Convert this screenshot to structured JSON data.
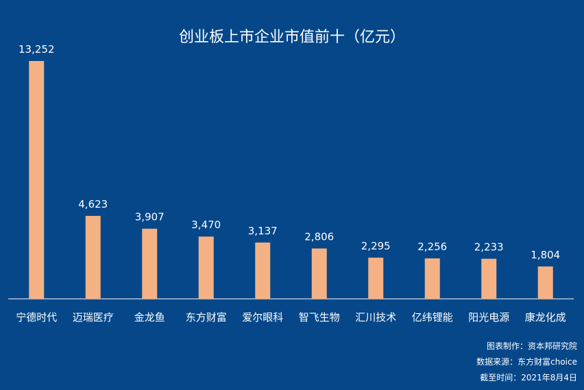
{
  "chart_data": {
    "type": "bar",
    "title": "创业板上市企业市值前十（亿元）",
    "categories": [
      "宁德时代",
      "迈瑞医疗",
      "金龙鱼",
      "东方财富",
      "爱尔眼科",
      "智飞生物",
      "汇川技术",
      "亿纬锂能",
      "阳光电源",
      "康龙化成"
    ],
    "values": [
      13252,
      4623,
      3907,
      3470,
      3137,
      2806,
      2295,
      2256,
      2233,
      1804
    ],
    "value_labels": [
      "13,252",
      "4,623",
      "3,907",
      "3,470",
      "3,137",
      "2,806",
      "2,295",
      "2,256",
      "2,233",
      "1,804"
    ],
    "ylim": [
      0,
      13252
    ],
    "grid": false,
    "colors": {
      "background": "#064789",
      "bar": "#F4B183",
      "text": "#ffffff",
      "axis": "#ffffff"
    }
  },
  "footer": {
    "maker": "图表制作：资本邦研究院",
    "source": "数据来源：东方财富choice",
    "date": "截至时间：2021年8月4日"
  }
}
